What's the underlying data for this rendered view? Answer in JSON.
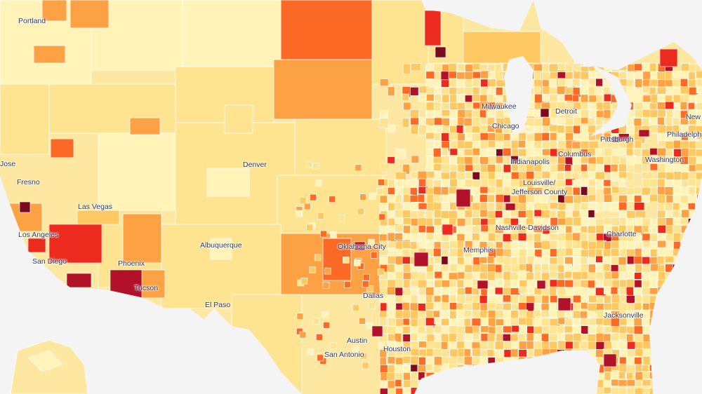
{
  "map": {
    "type": "choropleth",
    "region_level": "county",
    "color_scale": [
      "#fff3b8",
      "#fee391",
      "#fec963",
      "#fda244",
      "#fc6a25",
      "#ec2a1e",
      "#b1122a",
      "#7a0a1c"
    ],
    "no_data_color": "#ececec",
    "ocean_color": "#f4f4f4"
  },
  "cities": [
    "Portland",
    "Jose",
    "Fresno",
    "Las Vegas",
    "Los Angeles",
    "San Diego",
    "Phoenix",
    "Tucson",
    "Denver",
    "Albuquerque",
    "El Paso",
    "Oklahoma City",
    "Dallas",
    "Austin",
    "San Antonio",
    "Houston",
    "Milwaukee",
    "Chicago",
    "Detroit",
    "Indianapolis",
    "Columbus",
    "Pittsburgh",
    "Louisville/",
    "Jefferson County",
    "Nashville-Davidson",
    "Memphis",
    "Charlotte",
    "Washington",
    "Philadelphia",
    "New",
    "Jacksonville"
  ]
}
